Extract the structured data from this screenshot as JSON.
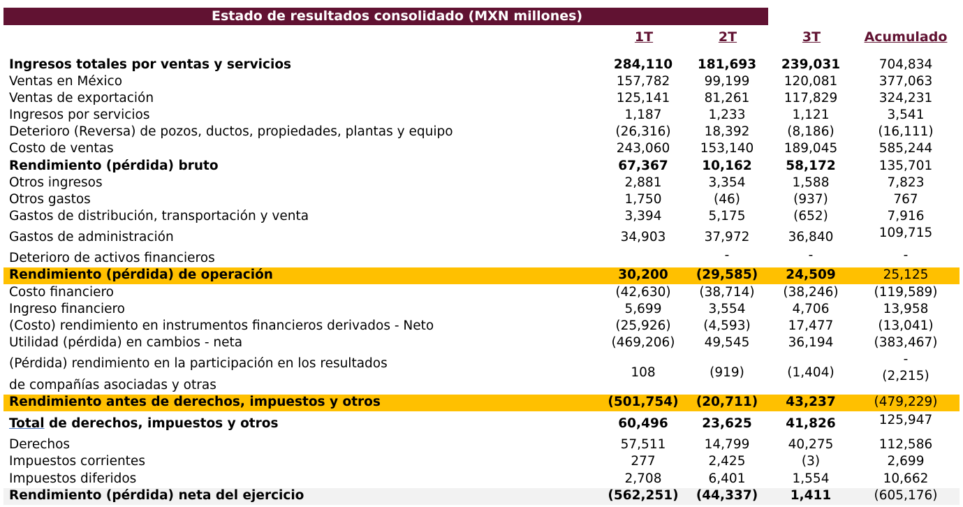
{
  "title": "Estado de resultados consolidado (MXN millones)",
  "columns": [
    "1T",
    "2T",
    "3T",
    "Acumulado"
  ],
  "rows": [
    {
      "label": "Ingresos totales por ventas y servicios",
      "q1": "284,110",
      "q2": "181,693",
      "q3": "239,031",
      "acc": "704,834"
    },
    {
      "label": "Ventas en México",
      "q1": "157,782",
      "q2": "99,199",
      "q3": "120,081",
      "acc": "377,063"
    },
    {
      "label": "Ventas de exportación",
      "q1": "125,141",
      "q2": "81,261",
      "q3": "117,829",
      "acc": "324,231"
    },
    {
      "label": "Ingresos por servicios",
      "q1": "1,187",
      "q2": "1,233",
      "q3": "1,121",
      "acc": "3,541"
    },
    {
      "label": "Deterioro (Reversa) de pozos, ductos, propiedades, plantas y equipo",
      "q1": "(26,316)",
      "q2": "18,392",
      "q3": "(8,186)",
      "acc": "(16,111)"
    },
    {
      "label": "Costo de ventas",
      "q1": "243,060",
      "q2": "153,140",
      "q3": "189,045",
      "acc": "585,244"
    },
    {
      "label": "Rendimiento (pérdida) bruto",
      "q1": "67,367",
      "q2": "10,162",
      "q3": "58,172",
      "acc": "135,701"
    },
    {
      "label": "Otros ingresos",
      "q1": "2,881",
      "q2": "3,354",
      "q3": "1,588",
      "acc": "7,823"
    },
    {
      "label": "Otros gastos",
      "q1": "1,750",
      "q2": "(46)",
      "q3": "(937)",
      "acc": "767"
    },
    {
      "label": "Gastos de distribución, transportación y venta",
      "q1": "3,394",
      "q2": "5,175",
      "q3": "(652)",
      "acc": "7,916"
    },
    {
      "label": "Gastos de administración",
      "q1": "34,903",
      "q2": "37,972",
      "q3": "36,840",
      "acc": "109,715"
    },
    {
      "label": "Deterioro de activos financieros",
      "q1": "",
      "q2": "-",
      "q3": "-",
      "acc": "-"
    },
    {
      "label": "Rendimiento (pérdida) de operación",
      "q1": "30,200",
      "q2": "(29,585)",
      "q3": "24,509",
      "acc": "25,125"
    },
    {
      "label": "Costo financiero",
      "q1": "(42,630)",
      "q2": "(38,714)",
      "q3": "(38,246)",
      "acc": "(119,589)"
    },
    {
      "label": "Ingreso financiero",
      "q1": "5,699",
      "q2": "3,554",
      "q3": "4,706",
      "acc": "13,958"
    },
    {
      "label": "(Costo) rendimiento en instrumentos financieros derivados - Neto",
      "q1": "(25,926)",
      "q2": "(4,593)",
      "q3": "17,477",
      "acc": "(13,041)"
    },
    {
      "label": "Utilidad (pérdida) en cambios - neta",
      "q1": "(469,206)",
      "q2": "49,545",
      "q3": "36,194",
      "acc": "(383,467)"
    },
    {
      "label": "(Pérdida) rendimiento en la participación en los resultados",
      "label2": "de compañías asociadas y otras",
      "q1": "108",
      "q2": "(919)",
      "q3": "(1,404)",
      "acc_dash": "-",
      "acc": "(2,215)"
    },
    {
      "label": "Rendimiento antes de derechos, impuestos y otros",
      "q1": "(501,754)",
      "q2": "(20,711)",
      "q3": "43,237",
      "acc": "(479,229)"
    },
    {
      "label_u": "Total",
      "label": " de derechos, impuestos y otros",
      "q1": "60,496",
      "q2": "23,625",
      "q3": "41,826",
      "acc": "125,947"
    },
    {
      "label": "Derechos",
      "q1": "57,511",
      "q2": "14,799",
      "q3": "40,275",
      "acc": "112,586"
    },
    {
      "label": "Impuestos corrientes",
      "q1": "277",
      "q2": "2,425",
      "q3": "(3)",
      "acc": "2,699"
    },
    {
      "label": "Impuestos diferidos",
      "q1": "2,708",
      "q2": "6,401",
      "q3": "1,554",
      "acc": "10,662"
    },
    {
      "label": "Rendimiento (pérdida) neta del ejercicio",
      "q1": "(562,251)",
      "q2": "(44,337)",
      "q3": "1,411",
      "acc": "(605,176)"
    }
  ],
  "colors": {
    "title_bg": "#611232",
    "header_text": "#611232",
    "highlight_yellow": "#ffc000",
    "highlight_grey": "#f2f2f2"
  }
}
